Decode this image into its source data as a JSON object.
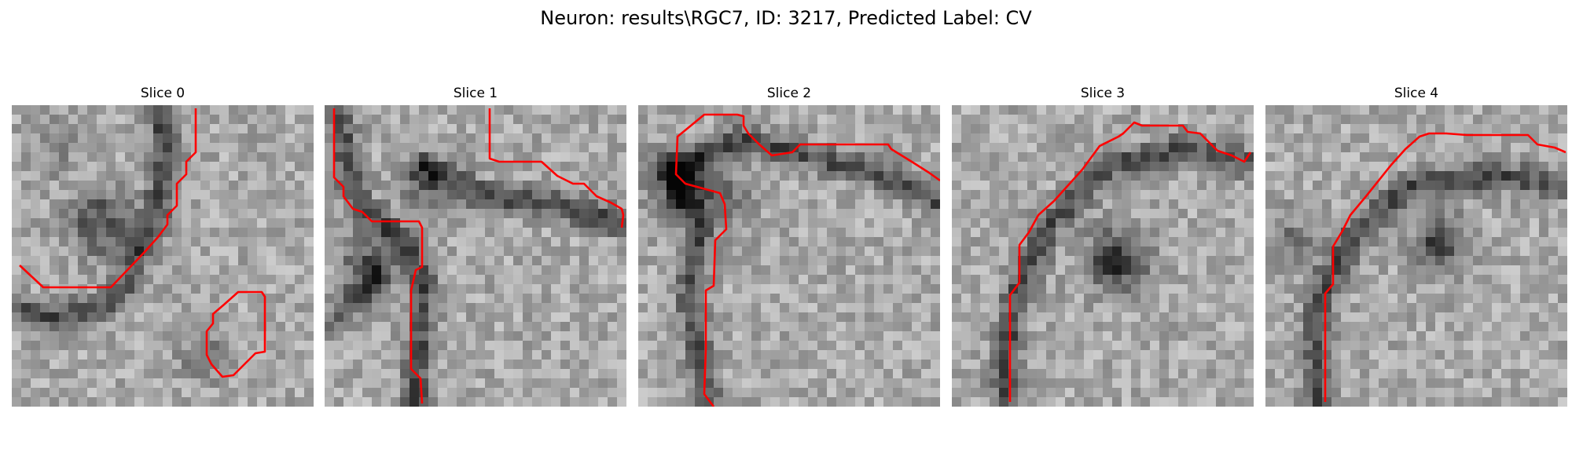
{
  "figure": {
    "title": "Neuron: results\\RGC7, ID: 3217, Predicted Label: CV"
  },
  "panels": [
    {
      "title": "Slice 0",
      "contour_color": "#ff0000"
    },
    {
      "title": "Slice 1",
      "contour_color": "#ff0000"
    },
    {
      "title": "Slice 2",
      "contour_color": "#ff0000"
    },
    {
      "title": "Slice 3",
      "contour_color": "#ff0000"
    },
    {
      "title": "Slice 4",
      "contour_color": "#ff0000"
    }
  ]
}
